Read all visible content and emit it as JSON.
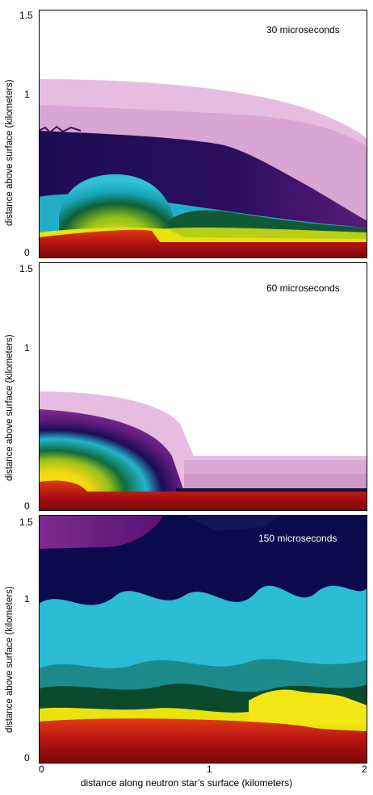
{
  "figure": {
    "y_axis_label": "distance above surface (kilometers)",
    "x_axis_label": "distance along neutron star’s surface (kilometers)",
    "y_ticks": [
      "0",
      "1",
      "1.5"
    ],
    "x_ticks": [
      "0",
      "1",
      "2"
    ],
    "panels": [
      {
        "time_label": "30 microseconds"
      },
      {
        "time_label": "60 microseconds"
      },
      {
        "time_label": "150 microseconds"
      }
    ],
    "colors": {
      "deep_red": "#9c0d0d",
      "yellow": "#e8e20e",
      "green": "#0f6b3c",
      "cyan": "#22b5cc",
      "navy": "#1c0f5c",
      "purple": "#52136f",
      "light_purple": "#d9a8d2"
    }
  }
}
